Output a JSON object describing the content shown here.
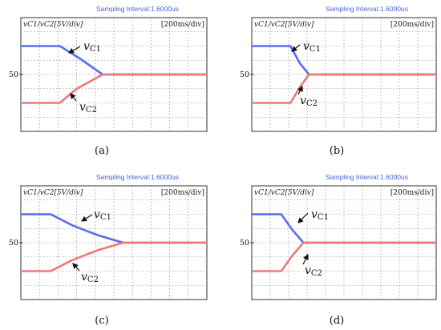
{
  "chart_data": [
    {
      "type": "line",
      "id": "a",
      "caption": "(a)",
      "sampling_text": "Sampling Interval:1.6000us",
      "channel_label": "vC1/vC2[5V/div]",
      "timebase_label": "[200ms/div]",
      "y_tick_label": "50",
      "xlim": [
        0,
        10
      ],
      "ylim": [
        -4,
        4
      ],
      "annotations": [
        {
          "main": "v",
          "sub": "C1",
          "series": "vC1"
        },
        {
          "main": "v",
          "sub": "C2",
          "series": "vC2"
        }
      ],
      "series": [
        {
          "name": "vC1",
          "color": "#5a6cf0",
          "x": [
            0,
            2.1,
            3.2,
            4.4,
            10
          ],
          "y": [
            2.0,
            2.0,
            1.1,
            0.0,
            0.0
          ]
        },
        {
          "name": "vC2",
          "color": "#f07878",
          "x": [
            0,
            2.1,
            3.0,
            4.4,
            10
          ],
          "y": [
            -2.0,
            -2.0,
            -1.0,
            0.0,
            0.0
          ]
        }
      ]
    },
    {
      "type": "line",
      "id": "b",
      "caption": "(b)",
      "sampling_text": "Sampling Interval:1.6000us",
      "channel_label": "vC1/vC2[5V/div]",
      "timebase_label": "[200ms/div]",
      "y_tick_label": "50",
      "xlim": [
        0,
        10
      ],
      "ylim": [
        -4,
        4
      ],
      "annotations": [
        {
          "main": "v",
          "sub": "C1",
          "series": "vC1"
        },
        {
          "main": "v",
          "sub": "C2",
          "series": "vC2"
        }
      ],
      "series": [
        {
          "name": "vC1",
          "color": "#5a6cf0",
          "x": [
            0,
            2.1,
            2.6,
            3.1,
            10
          ],
          "y": [
            2.0,
            2.0,
            0.8,
            0.0,
            0.0
          ]
        },
        {
          "name": "vC2",
          "color": "#f07878",
          "x": [
            0,
            2.1,
            2.6,
            3.1,
            10
          ],
          "y": [
            -2.0,
            -2.0,
            -0.9,
            0.0,
            0.0
          ]
        }
      ]
    },
    {
      "type": "line",
      "id": "c",
      "caption": "(c)",
      "sampling_text": "Sampling Interval:1.6000us",
      "channel_label": "vC1/vC2[5V/div]",
      "timebase_label": "[200ms/div]",
      "y_tick_label": "50",
      "xlim": [
        0,
        10
      ],
      "ylim": [
        -4,
        4
      ],
      "annotations": [
        {
          "main": "v",
          "sub": "C1",
          "series": "vC1"
        },
        {
          "main": "v",
          "sub": "C2",
          "series": "vC2"
        }
      ],
      "series": [
        {
          "name": "vC1",
          "color": "#5a6cf0",
          "x": [
            0,
            1.6,
            2.8,
            4.2,
            5.5,
            10
          ],
          "y": [
            2.0,
            2.0,
            1.2,
            0.5,
            0.0,
            0.0
          ]
        },
        {
          "name": "vC2",
          "color": "#f07878",
          "x": [
            0,
            1.6,
            2.8,
            4.2,
            5.5,
            10
          ],
          "y": [
            -2.0,
            -2.0,
            -1.2,
            -0.5,
            0.0,
            0.0
          ]
        }
      ]
    },
    {
      "type": "line",
      "id": "d",
      "caption": "(d)",
      "sampling_text": "Sampling Interval:1.6000us",
      "channel_label": "vC1/vC2[5V/div]",
      "timebase_label": "[200ms/div]",
      "y_tick_label": "50",
      "xlim": [
        0,
        10
      ],
      "ylim": [
        -4,
        4
      ],
      "annotations": [
        {
          "main": "v",
          "sub": "C1",
          "series": "vC1"
        },
        {
          "main": "v",
          "sub": "C2",
          "series": "vC2"
        }
      ],
      "series": [
        {
          "name": "vC1",
          "color": "#5a6cf0",
          "x": [
            0,
            1.6,
            2.2,
            2.8,
            10
          ],
          "y": [
            2.0,
            2.0,
            0.9,
            0.0,
            0.0
          ]
        },
        {
          "name": "vC2",
          "color": "#f07878",
          "x": [
            0,
            1.6,
            2.2,
            2.8,
            10
          ],
          "y": [
            -2.0,
            -2.0,
            -0.9,
            0.0,
            0.0
          ]
        }
      ]
    }
  ]
}
